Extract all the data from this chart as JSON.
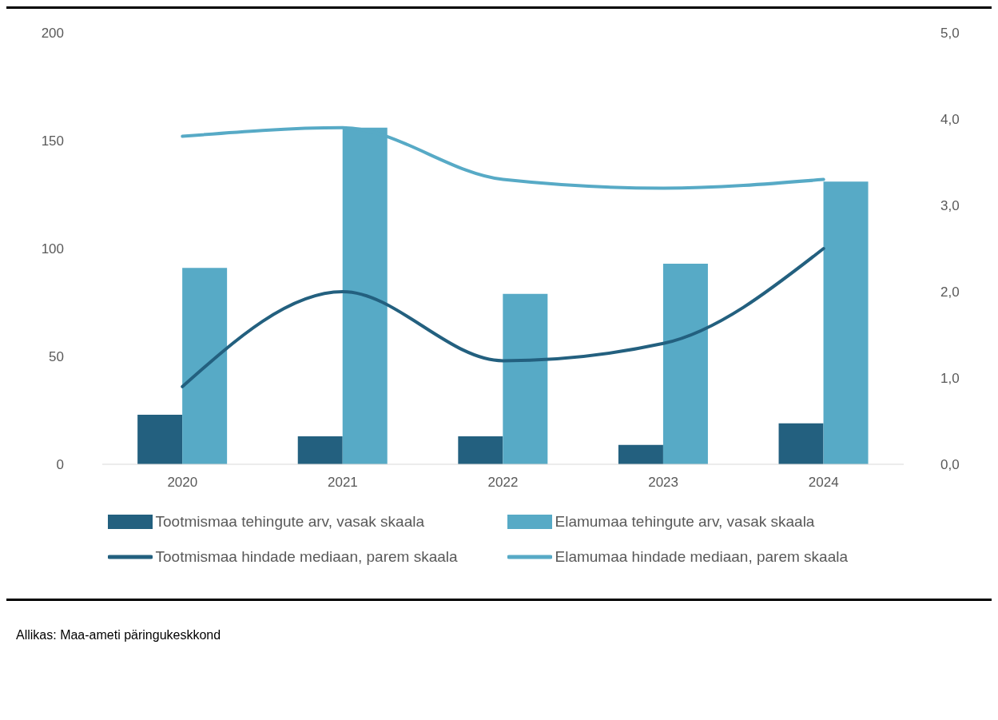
{
  "chart_data": {
    "type": "bar",
    "categories": [
      "2020",
      "2021",
      "2022",
      "2023",
      "2024"
    ],
    "series": [
      {
        "name": "Tootmismaa tehingute arv, vasak skaala",
        "color": "#23607f",
        "values": [
          23,
          13,
          13,
          9,
          19
        ]
      },
      {
        "name": "Elamumaa tehingute arv, vasak skaala",
        "color": "#57aac6",
        "values": [
          91,
          156,
          79,
          93,
          131
        ]
      },
      {
        "name": "Tootmismaa hindade mediaan, parem skaala",
        "type": "line",
        "axis": "y2",
        "color": "#23607f",
        "values": [
          0.9,
          2.0,
          1.2,
          1.4,
          2.5
        ]
      },
      {
        "name": "Elamumaa hindade mediaan, parem skaala",
        "type": "line",
        "axis": "y2",
        "color": "#57aac6",
        "values": [
          3.8,
          3.9,
          3.3,
          3.2,
          3.3
        ]
      }
    ],
    "ylim": [
      0,
      200
    ],
    "yticks": [
      0,
      50,
      100,
      150,
      200
    ],
    "y2lim": [
      0,
      5
    ],
    "y2ticks": [
      {
        "value": 0,
        "label": "0,0"
      },
      {
        "value": 1,
        "label": "1,0"
      },
      {
        "value": 2,
        "label": "2,0"
      },
      {
        "value": 3,
        "label": "3,0"
      },
      {
        "value": 4,
        "label": "4,0"
      },
      {
        "value": 5,
        "label": "5,0"
      }
    ],
    "grid": false,
    "legend": "bottom",
    "marker": "none",
    "line_style": "solid",
    "annotations": [
      "Allikas: Maa-ameti päringukeskkond"
    ]
  }
}
